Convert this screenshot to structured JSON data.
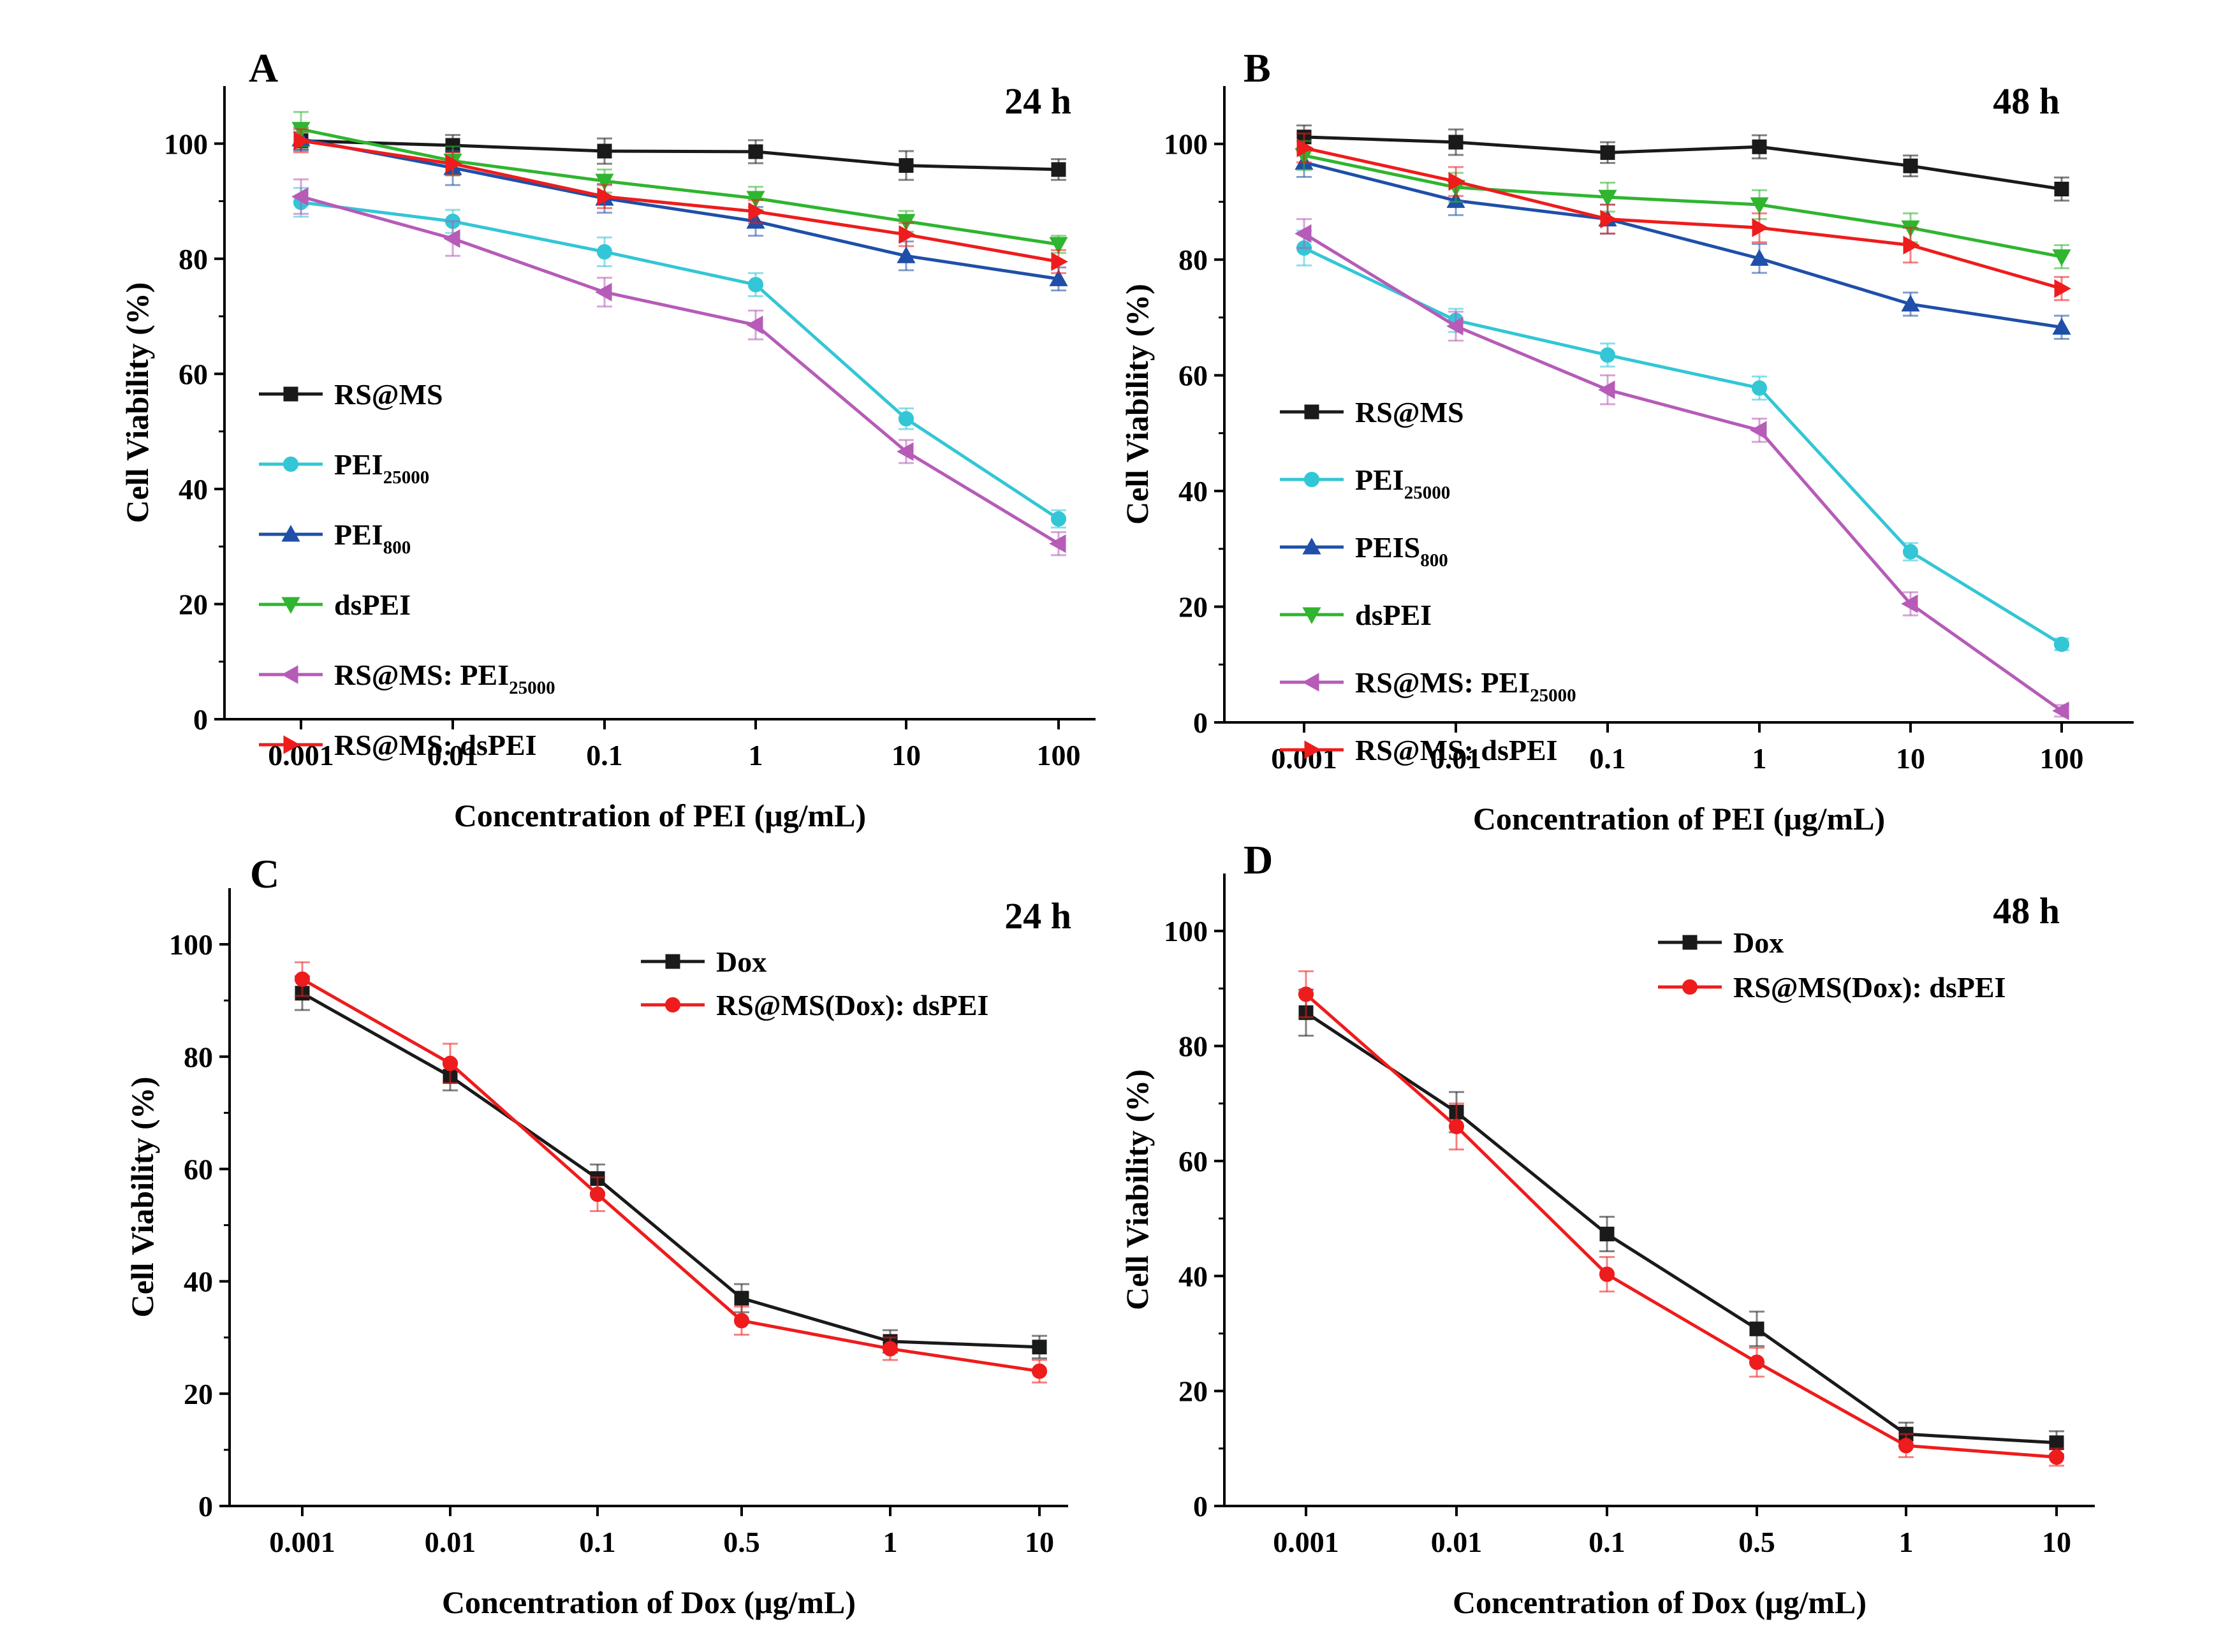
{
  "chart_data": [
    {
      "type": "line",
      "panel": "A",
      "title": "24 h",
      "xlabel": "Concentration of PEI (μg/mL)",
      "ylabel": "Cell Viability (%)",
      "categories": [
        "0.001",
        "0.01",
        "0.1",
        "1",
        "10",
        "100"
      ],
      "ylim": [
        0,
        110
      ],
      "yticks": [
        0,
        20,
        40,
        60,
        80,
        100
      ],
      "legend_position": "middle-left",
      "series": [
        {
          "name": "RS@MS",
          "legend": {
            "base": "RS@MS",
            "sub": ""
          },
          "color": "#1a1a1a",
          "marker": "square",
          "values": [
            100.5,
            99.7,
            98.7,
            98.6,
            96.2,
            95.5
          ],
          "errors": [
            1.5,
            1.8,
            2.2,
            2.0,
            2.5,
            1.8
          ]
        },
        {
          "name": "PEI25000",
          "legend": {
            "base": "PEI",
            "sub": "25000"
          },
          "color": "#33c6d6",
          "marker": "circle",
          "values": [
            89.8,
            86.5,
            81.2,
            75.5,
            52.2,
            34.8
          ],
          "errors": [
            2.5,
            2.0,
            2.5,
            2.0,
            1.8,
            1.5
          ]
        },
        {
          "name": "PEI800",
          "legend": {
            "base": "PEI",
            "sub": "800"
          },
          "color": "#1f4fa8",
          "marker": "triangle-up",
          "values": [
            100.8,
            95.8,
            90.5,
            86.5,
            80.5,
            76.5
          ],
          "errors": [
            2.0,
            3.0,
            2.5,
            2.5,
            2.5,
            2.0
          ]
        },
        {
          "name": "dsPEI",
          "legend": {
            "base": "dsPEI",
            "sub": ""
          },
          "color": "#2fb52f",
          "marker": "triangle-down",
          "values": [
            102.5,
            97.0,
            93.5,
            90.5,
            86.5,
            82.5
          ],
          "errors": [
            3.0,
            2.5,
            2.0,
            2.0,
            1.8,
            1.5
          ]
        },
        {
          "name": "RS@MS: PEI25000",
          "legend": {
            "base": "RS@MS: PEI",
            "sub": "25000"
          },
          "color": "#b65bb8",
          "marker": "triangle-left",
          "values": [
            90.8,
            83.5,
            74.2,
            68.5,
            46.5,
            30.5
          ],
          "errors": [
            3.0,
            3.0,
            2.5,
            2.5,
            2.0,
            2.0
          ]
        },
        {
          "name": "RS@MS: dsPEI",
          "legend": {
            "base": "RS@MS: dsPEI",
            "sub": ""
          },
          "color": "#ee1c1c",
          "marker": "triangle-right",
          "values": [
            100.5,
            96.5,
            90.8,
            88.2,
            84.2,
            79.5
          ],
          "errors": [
            2.0,
            2.0,
            2.0,
            2.0,
            2.0,
            2.0
          ]
        }
      ]
    },
    {
      "type": "line",
      "panel": "B",
      "title": "48 h",
      "xlabel": "Concentration of PEI (μg/mL)",
      "ylabel": "Cell Viability (%)",
      "categories": [
        "0.001",
        "0.01",
        "0.1",
        "1",
        "10",
        "100"
      ],
      "ylim": [
        0,
        110
      ],
      "yticks": [
        0,
        20,
        40,
        60,
        80,
        100
      ],
      "legend_position": "lower-left",
      "series": [
        {
          "name": "RS@MS",
          "legend": {
            "base": "RS@MS",
            "sub": ""
          },
          "color": "#1a1a1a",
          "marker": "square",
          "values": [
            101.2,
            100.3,
            98.5,
            99.5,
            96.2,
            92.2
          ],
          "errors": [
            2.0,
            2.2,
            1.8,
            2.0,
            1.8,
            2.0
          ]
        },
        {
          "name": "PEI25000",
          "legend": {
            "base": "PEI",
            "sub": "25000"
          },
          "color": "#33c6d6",
          "marker": "circle",
          "values": [
            82.0,
            69.5,
            63.5,
            57.8,
            29.5,
            13.5
          ],
          "errors": [
            3.0,
            2.0,
            2.0,
            2.0,
            1.5,
            1.0
          ]
        },
        {
          "name": "PEIS800",
          "legend": {
            "base": "PEIS",
            "sub": "800"
          },
          "color": "#1f4fa8",
          "marker": "triangle-up",
          "values": [
            96.8,
            90.2,
            87.0,
            80.2,
            72.3,
            68.3
          ],
          "errors": [
            2.5,
            2.5,
            2.5,
            2.5,
            2.0,
            2.0
          ]
        },
        {
          "name": "dsPEI",
          "legend": {
            "base": "dsPEI",
            "sub": ""
          },
          "color": "#2fb52f",
          "marker": "triangle-down",
          "values": [
            98.0,
            92.5,
            90.8,
            89.5,
            85.5,
            80.5
          ],
          "errors": [
            2.5,
            2.5,
            2.5,
            2.5,
            2.5,
            2.0
          ]
        },
        {
          "name": "RS@MS: PEI25000",
          "legend": {
            "base": "RS@MS: PEI",
            "sub": "25000"
          },
          "color": "#b65bb8",
          "marker": "triangle-left",
          "values": [
            84.5,
            68.5,
            57.5,
            50.5,
            20.5,
            2.0
          ],
          "errors": [
            2.5,
            2.5,
            2.5,
            2.0,
            2.0,
            1.0
          ]
        },
        {
          "name": "RS@MS: dsPEI",
          "legend": {
            "base": "RS@MS: dsPEI",
            "sub": ""
          },
          "color": "#ee1c1c",
          "marker": "triangle-right",
          "values": [
            99.3,
            93.5,
            87.0,
            85.5,
            82.5,
            75.0
          ],
          "errors": [
            2.5,
            2.5,
            2.5,
            2.5,
            3.0,
            2.0
          ]
        }
      ]
    },
    {
      "type": "line",
      "panel": "C",
      "title": "24 h",
      "xlabel": "Concentration of Dox (μg/mL)",
      "ylabel": "Cell Viability (%)",
      "categories": [
        "0.001",
        "0.01",
        "0.1",
        "0.5",
        "1",
        "10"
      ],
      "ylim": [
        0,
        110
      ],
      "yticks": [
        0,
        20,
        40,
        60,
        80,
        100
      ],
      "legend_position": "top-right",
      "series": [
        {
          "name": "Dox",
          "legend": {
            "base": "Dox",
            "sub": ""
          },
          "color": "#1a1a1a",
          "marker": "square",
          "values": [
            91.3,
            76.5,
            58.3,
            37.0,
            29.3,
            28.3
          ],
          "errors": [
            3.0,
            2.5,
            2.5,
            2.5,
            2.0,
            2.0
          ]
        },
        {
          "name": "RS@MS(Dox): dsPEI",
          "legend": {
            "base": "RS@MS(Dox): dsPEI",
            "sub": ""
          },
          "color": "#ee1c1c",
          "marker": "circle",
          "values": [
            93.8,
            78.8,
            55.5,
            33.0,
            28.0,
            24.0
          ],
          "errors": [
            3.0,
            3.5,
            3.0,
            2.5,
            2.0,
            2.0
          ]
        }
      ]
    },
    {
      "type": "line",
      "panel": "D",
      "title": "48 h",
      "xlabel": "Concentration of Dox (μg/mL)",
      "ylabel": "Cell Viability (%)",
      "categories": [
        "0.001",
        "0.01",
        "0.1",
        "0.5",
        "1",
        "10"
      ],
      "ylim": [
        0,
        110
      ],
      "yticks": [
        0,
        20,
        40,
        60,
        80,
        100
      ],
      "legend_position": "top-right",
      "series": [
        {
          "name": "Dox",
          "legend": {
            "base": "Dox",
            "sub": ""
          },
          "color": "#1a1a1a",
          "marker": "square",
          "values": [
            85.8,
            68.5,
            47.3,
            30.8,
            12.5,
            11.0
          ],
          "errors": [
            4.0,
            3.5,
            3.0,
            3.0,
            2.0,
            2.0
          ]
        },
        {
          "name": "RS@MS(Dox): dsPEI",
          "legend": {
            "base": "RS@MS(Dox): dsPEI",
            "sub": ""
          },
          "color": "#ee1c1c",
          "marker": "circle",
          "values": [
            89.0,
            66.0,
            40.3,
            25.0,
            10.5,
            8.5
          ],
          "errors": [
            4.0,
            4.0,
            3.0,
            2.5,
            2.0,
            1.5
          ]
        }
      ]
    }
  ]
}
